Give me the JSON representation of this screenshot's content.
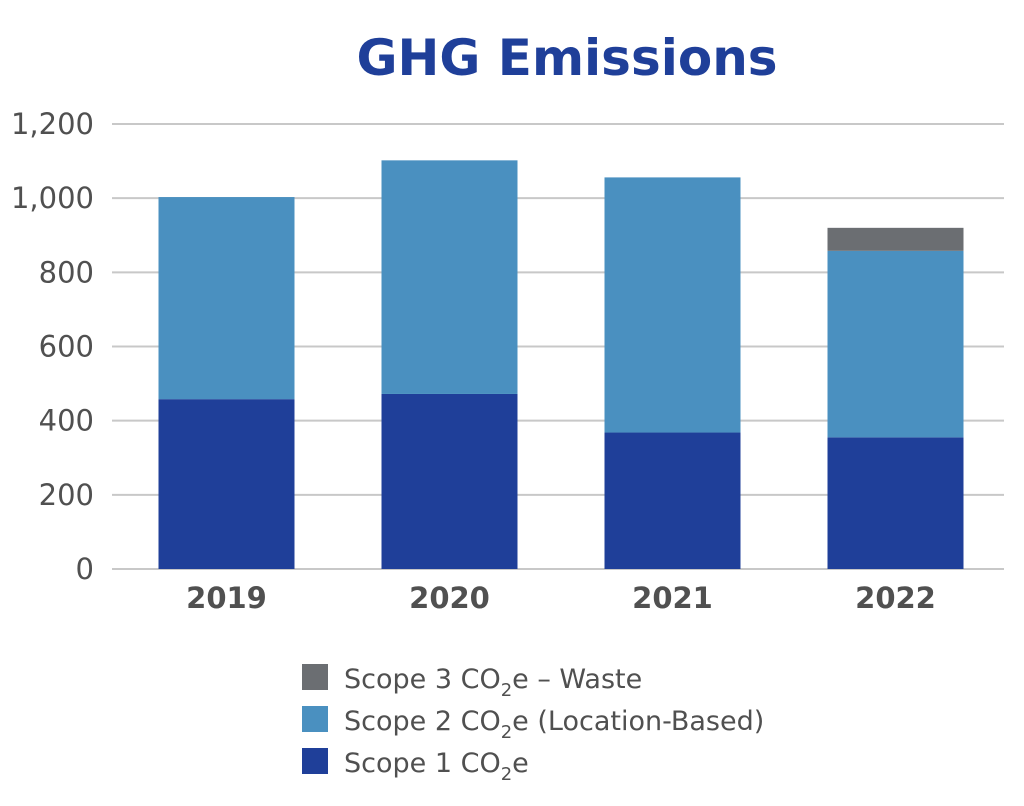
{
  "chart_data": {
    "type": "bar",
    "stacked": true,
    "title": "GHG Emissions",
    "xlabel": "",
    "ylabel": "",
    "categories": [
      "2019",
      "2020",
      "2021",
      "2022"
    ],
    "ylim": [
      0,
      1200
    ],
    "yticks": [
      0,
      200,
      400,
      600,
      800,
      1000,
      1200
    ],
    "ytick_labels": [
      "0",
      "200",
      "400",
      "600",
      "800",
      "1,000",
      "1,200"
    ],
    "grid": "horizontal",
    "legend_position": "bottom",
    "series": [
      {
        "name": "Scope 1 CO₂e",
        "name_parts": [
          "Scope 1 CO",
          "2",
          "e"
        ],
        "color": "#1f3f99",
        "values": [
          458,
          472,
          368,
          355
        ]
      },
      {
        "name": "Scope 2 CO₂e (Location-Based)",
        "name_parts": [
          "Scope 2 CO",
          "2",
          "e (Location-Based)"
        ],
        "color": "#4a90c0",
        "values": [
          545,
          630,
          688,
          503
        ]
      },
      {
        "name": "Scope 3 CO₂e – Waste",
        "name_parts": [
          "Scope 3 CO",
          "2",
          "e – Waste"
        ],
        "color": "#6b6e72",
        "values": [
          0,
          0,
          0,
          62
        ]
      }
    ],
    "legend_order": [
      2,
      1,
      0
    ],
    "title_color": "#1f3f99",
    "grid_color": "#c8c8c8"
  }
}
